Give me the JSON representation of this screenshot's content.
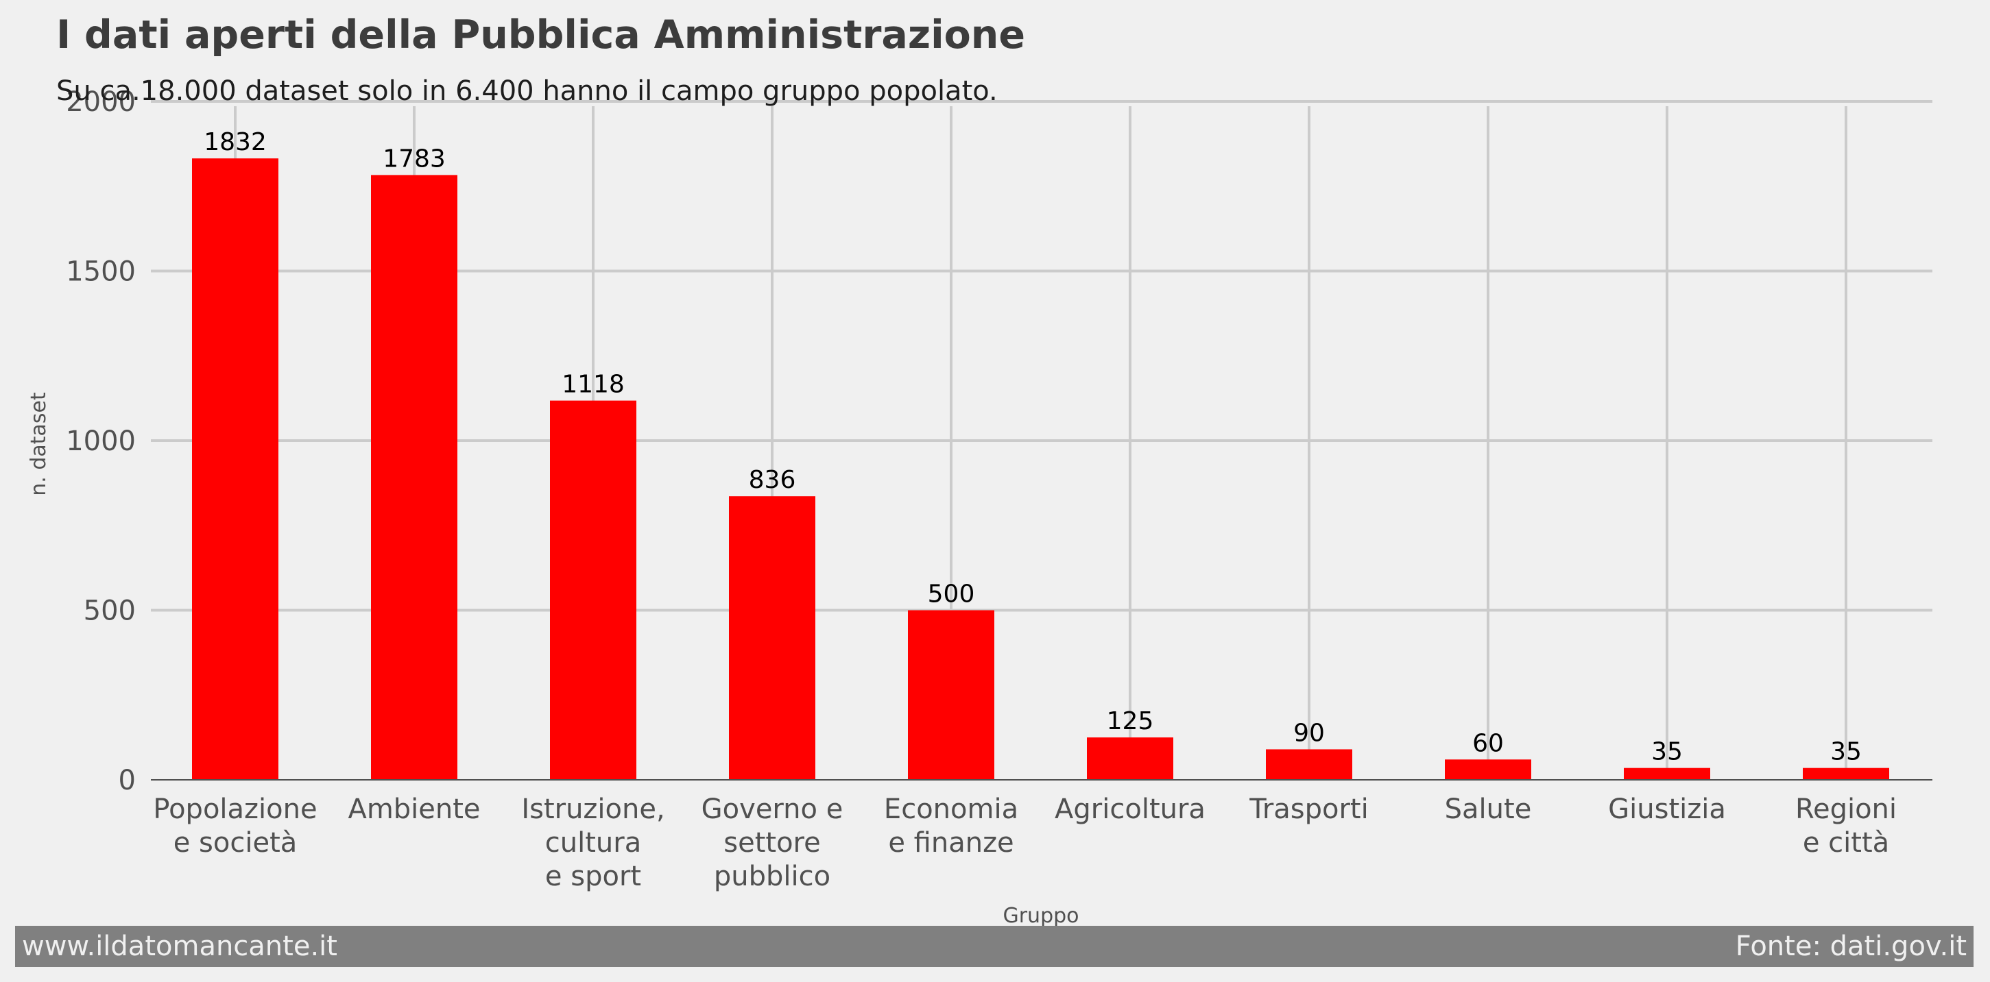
{
  "chart_data": {
    "type": "bar",
    "title": "I dati aperti della Pubblica Amministrazione",
    "subtitle": "Su ca.18.000 dataset solo in 6.400 hanno il campo gruppo popolato.",
    "xlabel": "Gruppo",
    "ylabel": "n. dataset",
    "categories": [
      [
        "Popolazione",
        "e società"
      ],
      [
        "Ambiente"
      ],
      [
        "Istruzione,",
        "cultura",
        "e sport"
      ],
      [
        "Governo e",
        "settore",
        "pubblico"
      ],
      [
        "Economia",
        "e finanze"
      ],
      [
        "Agricoltura"
      ],
      [
        "Trasporti"
      ],
      [
        "Salute"
      ],
      [
        "Giustizia"
      ],
      [
        "Regioni",
        "e città"
      ]
    ],
    "values": [
      1832,
      1783,
      1118,
      836,
      500,
      125,
      90,
      60,
      35,
      35
    ],
    "ylim": [
      0,
      2000
    ],
    "yticks": [
      0,
      500,
      1000,
      1500,
      2000
    ],
    "grid": true,
    "bar_color": "#ff0000",
    "grid_color": "#cbcbcb",
    "background_color": "#f0f0f0"
  },
  "footer": {
    "left": "www.ildatomancante.it",
    "right": "Fonte: dati.gov.it"
  }
}
